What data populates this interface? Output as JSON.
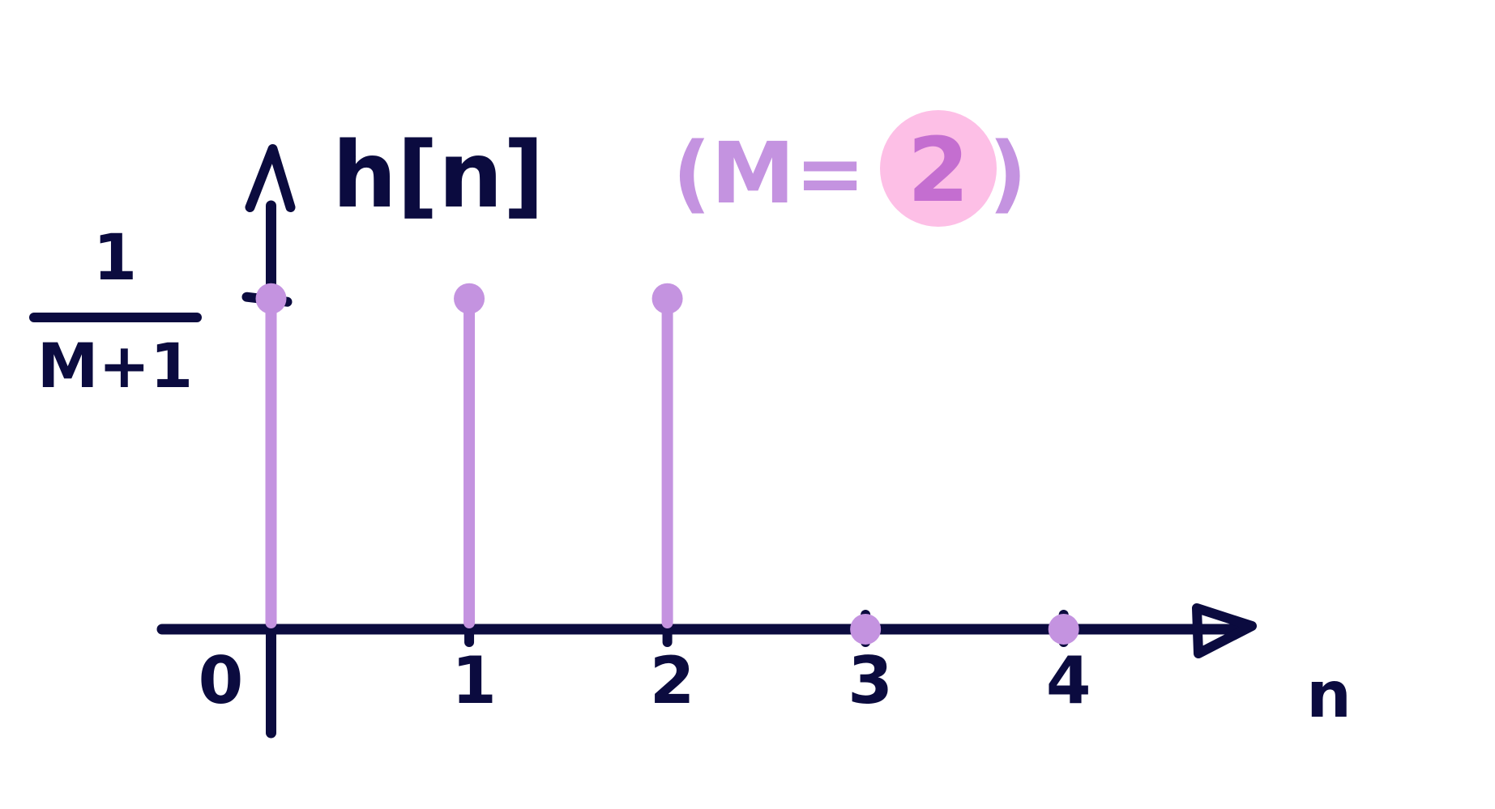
{
  "chart_data": {
    "type": "stem",
    "title": "h[n]",
    "annotation": {
      "prefix": "(M=",
      "value": "2",
      "suffix": ")"
    },
    "xlabel": "n",
    "ylabel_fraction": {
      "numerator": "1",
      "denominator": "M+1"
    },
    "x_ticks": [
      "0",
      "1",
      "2",
      "3",
      "4"
    ],
    "x": [
      0,
      1,
      2,
      3,
      4
    ],
    "values": [
      1,
      1,
      1,
      0,
      0
    ],
    "ylim": [
      0,
      1.33
    ],
    "xlim": [
      -0.55,
      4.95
    ],
    "grid": false,
    "colors": {
      "axis": "#0b0b3f",
      "stem": "#c493e0",
      "highlight": "#fdbfe6",
      "highlight_text": "#c46ed0"
    }
  }
}
